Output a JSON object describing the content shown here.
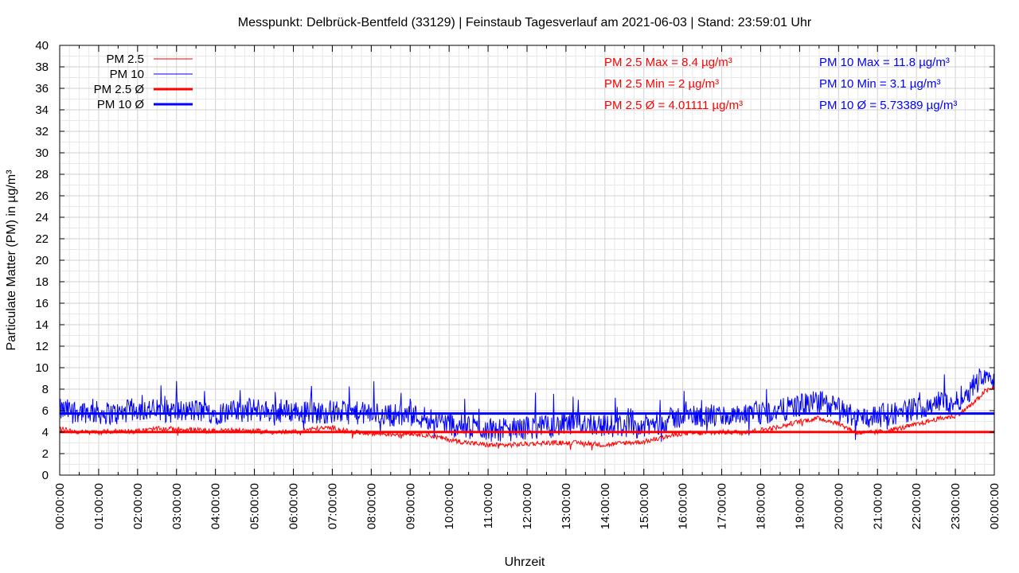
{
  "chart_data": {
    "type": "line",
    "title": "Messpunkt: Delbrück-Bentfeld (33129) | Feinstaub Tagesverlauf am 2021-06-03 | Stand: 23:59:01 Uhr",
    "xlabel": "Uhrzeit",
    "ylabel": "Particulate Matter (PM) in µg/m³",
    "ylim": [
      0,
      40
    ],
    "yticks": [
      "0",
      "2",
      "4",
      "6",
      "8",
      "10",
      "12",
      "14",
      "16",
      "18",
      "20",
      "22",
      "24",
      "26",
      "28",
      "30",
      "32",
      "34",
      "36",
      "38",
      "40"
    ],
    "xticks": [
      "00:00:00",
      "01:00:00",
      "02:00:00",
      "03:00:00",
      "04:00:00",
      "05:00:00",
      "06:00:00",
      "07:00:00",
      "08:00:00",
      "09:00:00",
      "10:00:00",
      "11:00:00",
      "12:00:00",
      "13:00:00",
      "14:00:00",
      "15:00:00",
      "16:00:00",
      "17:00:00",
      "18:00:00",
      "19:00:00",
      "20:00:00",
      "21:00:00",
      "22:00:00",
      "23:00:00",
      "00:00:00"
    ],
    "grid": true,
    "legend_position": "top-left",
    "x_hours": [
      0,
      0.5,
      1,
      1.5,
      2,
      2.5,
      3,
      3.5,
      4,
      4.5,
      5,
      5.5,
      6,
      6.5,
      7,
      7.5,
      8,
      8.5,
      9,
      9.5,
      10,
      10.5,
      11,
      11.5,
      12,
      12.5,
      13,
      13.5,
      14,
      14.5,
      15,
      15.5,
      16,
      16.5,
      17,
      17.5,
      18,
      18.5,
      19,
      19.5,
      20,
      20.5,
      21,
      21.5,
      22,
      22.5,
      23,
      23.25,
      23.5,
      23.75,
      24
    ],
    "series": [
      {
        "name": "PM 2.5",
        "color": "#ff0000",
        "values": [
          4.3,
          4.0,
          4.0,
          4.1,
          4.1,
          4.3,
          4.3,
          4.2,
          4.1,
          4.2,
          4.1,
          4.0,
          4.0,
          4.3,
          4.4,
          4.0,
          3.9,
          3.8,
          3.9,
          3.7,
          3.3,
          3.0,
          2.8,
          2.8,
          2.9,
          3.0,
          3.0,
          3.0,
          2.8,
          3.0,
          3.1,
          3.5,
          3.9,
          3.9,
          4.0,
          4.0,
          4.2,
          4.5,
          5.0,
          5.3,
          4.8,
          3.9,
          4.0,
          4.3,
          4.7,
          5.2,
          5.5,
          6.1,
          6.8,
          7.8,
          8.1
        ]
      },
      {
        "name": "PM 10",
        "color": "#0000ff",
        "values": [
          6.0,
          6.0,
          5.8,
          5.7,
          6.2,
          6.0,
          5.9,
          6.0,
          5.8,
          5.9,
          6.1,
          5.9,
          6.0,
          5.8,
          5.9,
          5.8,
          5.7,
          5.6,
          5.6,
          5.3,
          4.8,
          4.4,
          4.3,
          4.2,
          4.4,
          4.5,
          4.7,
          4.9,
          4.6,
          4.6,
          4.5,
          5.0,
          5.5,
          5.5,
          5.5,
          5.4,
          5.7,
          6.0,
          6.5,
          6.8,
          6.2,
          5.3,
          5.5,
          5.8,
          6.2,
          6.8,
          6.8,
          7.5,
          8.5,
          9.5,
          9.0
        ]
      }
    ],
    "averages": [
      {
        "name": "PM 2.5 Ø",
        "color": "#ff0000",
        "value": 4.01111
      },
      {
        "name": "PM 10 Ø",
        "color": "#0000ff",
        "value": 5.73389
      }
    ],
    "stats": {
      "pm25": [
        "PM 2.5 Max = 8.4 µg/m³",
        "PM 2.5 Min = 2 µg/m³",
        "PM 2.5 Ø = 4.01111 µg/m³"
      ],
      "pm10": [
        "PM 10 Max = 11.8 µg/m³",
        "PM 10 Min = 3.1 µg/m³",
        "PM 10 Ø = 5.73389 µg/m³"
      ]
    }
  }
}
